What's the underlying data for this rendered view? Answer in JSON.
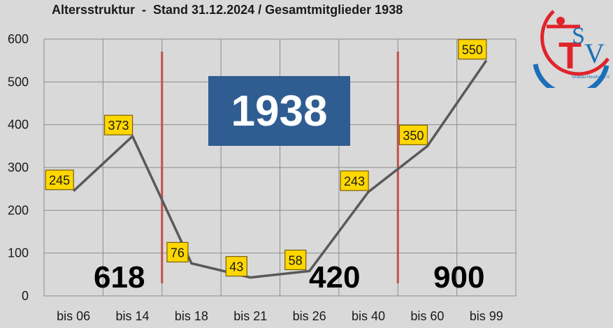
{
  "title": "Altersstruktur  -  Stand 31.12.2024 / Gesamtmitglieder 1938",
  "total": "1938",
  "group_sums": [
    {
      "label": "618"
    },
    {
      "label": "420"
    },
    {
      "label": "900"
    }
  ],
  "logo": {
    "letters": "TSV",
    "text": "Grabau-Neudorf e.V."
  },
  "colors": {
    "background": "#d9d9d9",
    "line": "#595959",
    "grid": "#8c8c8c",
    "divider": "#c0504d",
    "label_fill": "#ffd700",
    "total_box": "#2f5d91"
  },
  "chart_data": {
    "type": "line",
    "categories": [
      "bis 06",
      "bis 14",
      "bis 18",
      "bis 21",
      "bis 26",
      "bis 40",
      "bis 60",
      "bis 99"
    ],
    "values": [
      245,
      373,
      76,
      43,
      58,
      243,
      350,
      550
    ],
    "data_labels": [
      "245",
      "373",
      "76",
      "43",
      "58",
      "243",
      "350",
      "550"
    ],
    "ylim": [
      0,
      600
    ],
    "yticks": [
      0,
      100,
      200,
      300,
      400,
      500,
      600
    ],
    "grid": true,
    "legend": "none",
    "group_dividers_after_category": [
      1,
      5
    ],
    "title": "Altersstruktur  -  Stand 31.12.2024 / Gesamtmitglieder 1938",
    "xlabel": "",
    "ylabel": ""
  }
}
